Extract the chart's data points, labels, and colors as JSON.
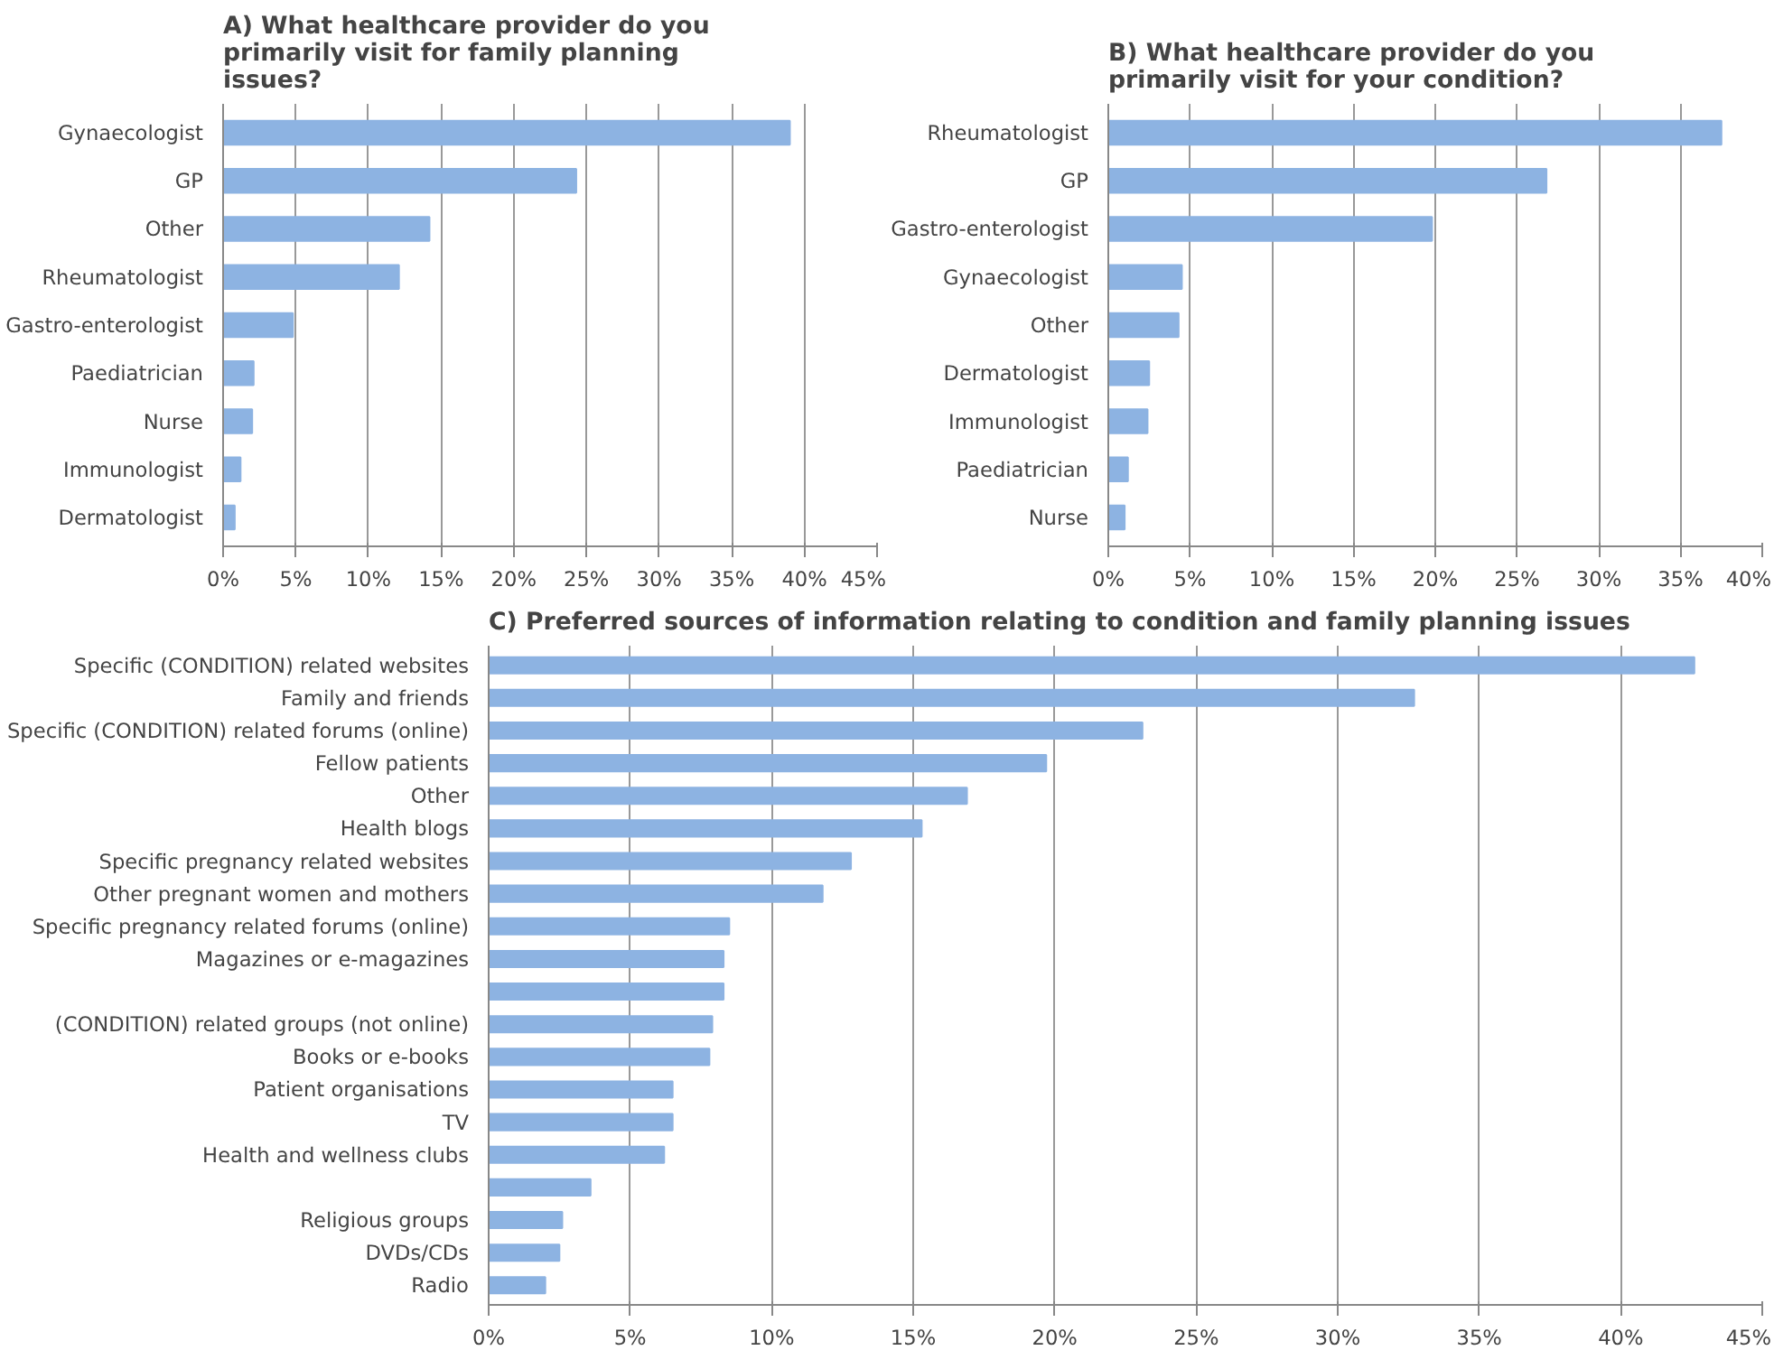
{
  "chart_data": [
    {
      "type": "bar",
      "orientation": "horizontal",
      "title": "A) What healthcare provider do you primarily visit for family planning issues?",
      "categories": [
        "Gynaecologist",
        "GP",
        "Other",
        "Rheumatologist",
        "Gastro-enterologist",
        "Paediatrician",
        "Nurse",
        "Immunologist",
        "Dermatologist"
      ],
      "values": [
        39.0,
        24.3,
        14.2,
        12.1,
        4.8,
        2.1,
        2.0,
        1.2,
        0.8
      ],
      "color": "#8db3e2",
      "xlim": [
        0,
        45
      ],
      "xticks": [
        {
          "value": 0,
          "label": "0%"
        },
        {
          "value": 5,
          "label": "5%"
        },
        {
          "value": 10,
          "label": "10%"
        },
        {
          "value": 15,
          "label": "15%"
        },
        {
          "value": 20,
          "label": "20%"
        },
        {
          "value": 25,
          "label": "25%"
        },
        {
          "value": 30,
          "label": "30%"
        },
        {
          "value": 35,
          "label": "35%"
        },
        {
          "value": 40,
          "label": "40%"
        },
        {
          "value": 45,
          "label": "45%"
        }
      ],
      "grid": "x"
    },
    {
      "type": "bar",
      "orientation": "horizontal",
      "title": "B) What healthcare provider do you primarily visit for your condition?",
      "categories": [
        "Rheumatologist",
        "GP",
        "Gastro-enterologist",
        "Gynaecologist",
        "Other",
        "Dermatologist",
        "Immunologist",
        "Paediatrician",
        "Nurse"
      ],
      "values": [
        37.5,
        26.8,
        19.8,
        4.5,
        4.3,
        2.5,
        2.4,
        1.2,
        1.0
      ],
      "color": "#8db3e2",
      "xlim": [
        0,
        40
      ],
      "xticks": [
        {
          "value": 0,
          "label": "0%"
        },
        {
          "value": 5,
          "label": "5%"
        },
        {
          "value": 10,
          "label": "10%"
        },
        {
          "value": 15,
          "label": "15%"
        },
        {
          "value": 20,
          "label": "20%"
        },
        {
          "value": 25,
          "label": "25%"
        },
        {
          "value": 30,
          "label": "30%"
        },
        {
          "value": 35,
          "label": "35%"
        },
        {
          "value": 40,
          "label": "40%"
        }
      ],
      "grid": "x"
    },
    {
      "type": "bar",
      "orientation": "horizontal",
      "title": "C) Preferred sources of information relating to condition and family planning issues",
      "categories": [
        "Specific (CONDITION) related websites",
        "Family and friends",
        "Specific (CONDITION) related forums (online)",
        "Fellow patients",
        "Other",
        "Health blogs",
        "Specific pregnancy related websites",
        "Other pregnant women and mothers",
        "Specific pregnancy related forums (online)",
        "Magazines or e-magazines",
        null,
        "(CONDITION) related groups (not online)",
        "Books or e-books",
        "Patient organisations",
        "TV",
        "Health and wellness clubs",
        null,
        "Religious groups",
        "DVDs/CDs",
        "Radio"
      ],
      "values": [
        42.6,
        32.7,
        23.1,
        19.7,
        16.9,
        15.3,
        12.8,
        11.8,
        8.5,
        8.3,
        8.3,
        7.9,
        7.8,
        6.5,
        6.5,
        6.2,
        3.6,
        2.6,
        2.5,
        2.0
      ],
      "color": "#8db3e2",
      "xlim": [
        0,
        45
      ],
      "xticks": [
        {
          "value": 0,
          "label": "0%"
        },
        {
          "value": 5,
          "label": "5%"
        },
        {
          "value": 10,
          "label": "10%"
        },
        {
          "value": 15,
          "label": "15%"
        },
        {
          "value": 20,
          "label": "20%"
        },
        {
          "value": 25,
          "label": "25%"
        },
        {
          "value": 30,
          "label": "30%"
        },
        {
          "value": 35,
          "label": "35%"
        },
        {
          "value": 40,
          "label": "40%"
        },
        {
          "value": 45,
          "label": "45%"
        }
      ],
      "grid": "x"
    }
  ]
}
